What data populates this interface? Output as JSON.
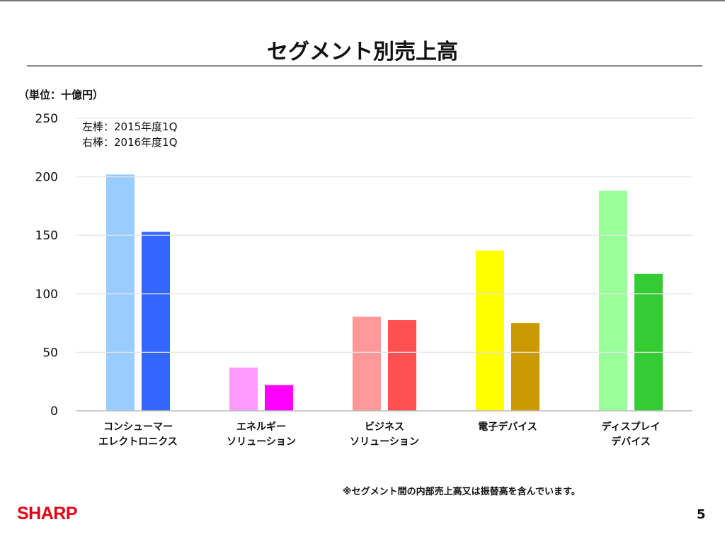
{
  "title": "セグメント別売上高",
  "unit": "（単位：十億円）",
  "legend": [
    "左棒：2015年度1Q",
    "右棒：2016年度1Q"
  ],
  "note": "※セグメント間の内部売上高又は振替高を含んでいます。",
  "logo": "SHARP",
  "page_number": "5",
  "chart_data": {
    "type": "bar",
    "title": "セグメント別売上高",
    "ylabel": "（単位：十億円）",
    "ylim": [
      0,
      250
    ],
    "yticks": [
      "0",
      "50",
      "100",
      "150",
      "200",
      "250"
    ],
    "grid": true,
    "legend_position": "top-left",
    "categories": [
      [
        "コンシューマー",
        "エレクトロニクス"
      ],
      [
        "エネルギー",
        "ソリューション"
      ],
      [
        "ビジネス",
        "ソリューション"
      ],
      [
        "電子デバイス"
      ],
      [
        "ディスプレイ",
        "デバイス"
      ]
    ],
    "series": [
      {
        "name": "2015年度1Q",
        "values": [
          202,
          37,
          80.5,
          137,
          188
        ],
        "colors": [
          "#99ccff",
          "#ff99ff",
          "#ff9999",
          "#ffff00",
          "#99ff99"
        ]
      },
      {
        "name": "2016年度1Q",
        "values": [
          153,
          22,
          77.5,
          75,
          117
        ],
        "colors": [
          "#3366ff",
          "#ff00ff",
          "#ff5050",
          "#cc9900",
          "#33cc33"
        ]
      }
    ]
  }
}
